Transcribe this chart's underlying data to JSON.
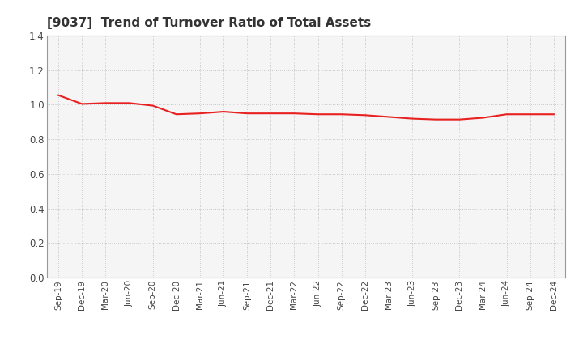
{
  "title": "[9037]  Trend of Turnover Ratio of Total Assets",
  "title_fontsize": 11,
  "line_color": "#e82020",
  "line_width": 1.5,
  "background_color": "#ffffff",
  "plot_bg_color": "#f5f5f5",
  "grid_color": "#bbbbbb",
  "ylim": [
    0.0,
    1.4
  ],
  "yticks": [
    0.0,
    0.2,
    0.4,
    0.6,
    0.8,
    1.0,
    1.2,
    1.4
  ],
  "x_labels": [
    "Sep-19",
    "Dec-19",
    "Mar-20",
    "Jun-20",
    "Sep-20",
    "Dec-20",
    "Mar-21",
    "Jun-21",
    "Sep-21",
    "Dec-21",
    "Mar-22",
    "Jun-22",
    "Sep-22",
    "Dec-22",
    "Mar-23",
    "Jun-23",
    "Sep-23",
    "Dec-23",
    "Mar-24",
    "Jun-24",
    "Sep-24",
    "Dec-24"
  ],
  "y_values": [
    1.055,
    1.005,
    1.01,
    1.01,
    0.995,
    0.945,
    0.95,
    0.96,
    0.95,
    0.95,
    0.95,
    0.945,
    0.945,
    0.94,
    0.93,
    0.92,
    0.915,
    0.915,
    0.925,
    0.945,
    0.945,
    0.945
  ]
}
